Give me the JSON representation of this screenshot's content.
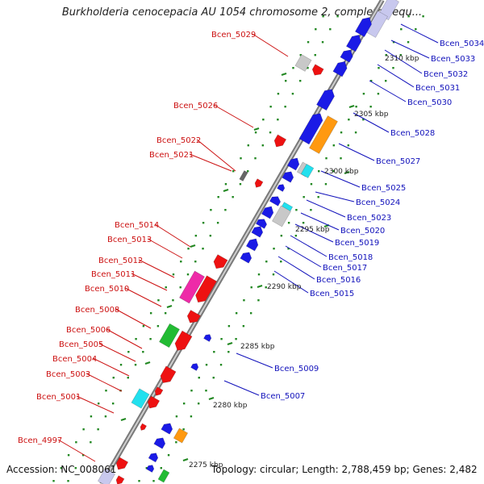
{
  "title": "Burkholderia cenocepacia AU 1054 chromosome 2, complete sequ...",
  "footer": {
    "accession": "Accession: NC_008061",
    "summary": "Topology: circular; Length: 2,788,459 bp; Genes: 2,482"
  },
  "colors": {
    "label_left": "#cc1111",
    "label_right": "#1111bb",
    "axis": "#888888",
    "tick": "#228822"
  },
  "kbp_labels": [
    "2310 kbp",
    "2305 kbp",
    "2300 kbp",
    "2295 kbp",
    "2290 kbp",
    "2285 kbp",
    "2280 kbp",
    "2275 kbp"
  ],
  "genes_left": [
    "Bcen_5029",
    "Bcen_5026",
    "Bcen_5022",
    "Bcen_5021",
    "Bcen_5014",
    "Bcen_5013",
    "Bcen_5012",
    "Bcen_5011",
    "Bcen_5010",
    "Bcen_5008",
    "Bcen_5006",
    "Bcen_5005",
    "Bcen_5004",
    "Bcen_5003",
    "Bcen_5001",
    "Bcen_4997"
  ],
  "genes_right": [
    "Bcen_5034",
    "Bcen_5033",
    "Bcen_5032",
    "Bcen_5031",
    "Bcen_5030",
    "Bcen_5028",
    "Bcen_5027",
    "Bcen_5025",
    "Bcen_5024",
    "Bcen_5023",
    "Bcen_5020",
    "Bcen_5019",
    "Bcen_5018",
    "Bcen_5017",
    "Bcen_5016",
    "Bcen_5015",
    "Bcen_5009",
    "Bcen_5007"
  ]
}
